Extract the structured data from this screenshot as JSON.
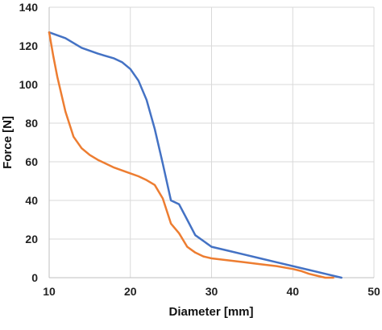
{
  "chart_data": {
    "type": "line",
    "title": "",
    "xlabel": "Diameter [mm]",
    "ylabel": "Force [N]",
    "xlim": [
      10,
      50
    ],
    "ylim": [
      0,
      140
    ],
    "xticks": [
      10,
      20,
      30,
      40,
      50
    ],
    "yticks": [
      0,
      20,
      40,
      60,
      80,
      100,
      120,
      140
    ],
    "grid": true,
    "legend": "none",
    "series": [
      {
        "color": "#4472C4",
        "x": [
          10,
          12,
          14,
          16,
          18,
          19,
          20,
          21,
          22,
          23,
          24,
          25,
          26,
          27,
          28,
          29,
          30,
          32,
          34,
          36,
          38,
          40,
          42,
          44,
          46
        ],
        "y": [
          127,
          124,
          119,
          116,
          113.5,
          111.5,
          108,
          102,
          92,
          77,
          59,
          40,
          38,
          30,
          22,
          19,
          16,
          14,
          12,
          10,
          8,
          6,
          4,
          2,
          0
        ]
      },
      {
        "color": "#ED7D31",
        "x": [
          10,
          10.5,
          11,
          12,
          13,
          14,
          15,
          16,
          18,
          20,
          21,
          22,
          23,
          24,
          25,
          26,
          27,
          28,
          29,
          30,
          32,
          34,
          36,
          38,
          40,
          41,
          42,
          43,
          44,
          45
        ],
        "y": [
          127,
          115,
          104,
          86,
          73,
          67,
          63.5,
          61,
          57,
          54,
          52.5,
          50.5,
          48,
          41,
          28,
          23,
          16,
          13,
          11,
          10,
          9,
          8,
          7,
          6,
          4.5,
          3.5,
          2,
          1,
          0,
          0
        ]
      }
    ]
  }
}
